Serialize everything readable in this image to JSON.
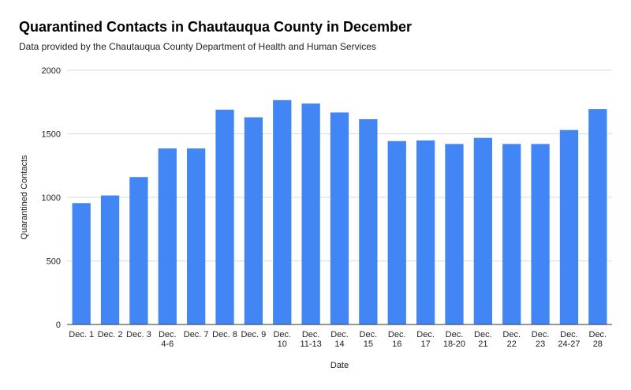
{
  "chart_data": {
    "type": "bar",
    "title": "Quarantined Contacts in Chautauqua County in December",
    "subtitle": "Data provided by the Chautauqua County Department of Health and Human Services",
    "xlabel": "Date",
    "ylabel": "Quarantined Contacts",
    "ylim": [
      0,
      2000
    ],
    "yticks": [
      "0",
      "500",
      "1000",
      "1500",
      "2000"
    ],
    "grid": true,
    "bar_color": "#4285f4",
    "categories": [
      [
        "Dec. 1"
      ],
      [
        "Dec. 2"
      ],
      [
        "Dec. 3"
      ],
      [
        "Dec.",
        "4-6"
      ],
      [
        "Dec. 7"
      ],
      [
        "Dec. 8"
      ],
      [
        "Dec. 9"
      ],
      [
        "Dec.",
        "10"
      ],
      [
        "Dec.",
        "11-13"
      ],
      [
        "Dec.",
        "14"
      ],
      [
        "Dec.",
        "15"
      ],
      [
        "Dec.",
        "16"
      ],
      [
        "Dec.",
        "17"
      ],
      [
        "Dec.",
        "18-20"
      ],
      [
        "Dec.",
        "21"
      ],
      [
        "Dec.",
        "22"
      ],
      [
        "Dec.",
        "23"
      ],
      [
        "Dec.",
        "24-27"
      ],
      [
        "Dec.",
        "28"
      ]
    ],
    "values": [
      955,
      1015,
      1160,
      1385,
      1385,
      1690,
      1630,
      1765,
      1738,
      1668,
      1615,
      1443,
      1448,
      1420,
      1468,
      1420,
      1420,
      1530,
      1695
    ]
  }
}
